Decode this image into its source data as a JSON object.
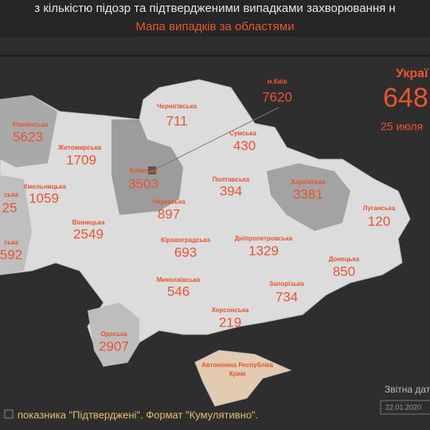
{
  "header": {
    "title": "з кількістю підозр та підтвердженими випадками захворювання н",
    "subtitle": "Мапа випадків за областями"
  },
  "regions": [
    {
      "name": "Рівненська",
      "value": "5623"
    },
    {
      "name": "Житомирська",
      "value": "1709"
    },
    {
      "name": "Чернігівська",
      "value": "711"
    },
    {
      "name": "м.Київ",
      "value": "7620"
    },
    {
      "name": "Сумська",
      "value": "430"
    },
    {
      "name": "Київська",
      "value": "3503"
    },
    {
      "name": "Хмельницька",
      "value": "1059"
    },
    {
      "name": "ська",
      "value": "25"
    },
    {
      "name": "Вінницька",
      "value": "2549"
    },
    {
      "name": "Черкаська",
      "value": "897"
    },
    {
      "name": "Полтавська",
      "value": "394"
    },
    {
      "name": "Харківська",
      "value": "3381"
    },
    {
      "name": "Луганська",
      "value": "120"
    },
    {
      "name": "Кіровоградська",
      "value": "693"
    },
    {
      "name": "Дніпропетровська",
      "value": "1329"
    },
    {
      "name": "Донецька",
      "value": "850"
    },
    {
      "name": "Миколаївська",
      "value": "546"
    },
    {
      "name": "Запорізька",
      "value": "734"
    },
    {
      "name": "Одеська",
      "value": "2907"
    },
    {
      "name": "Херсонська",
      "value": "219"
    },
    {
      "name": "ська",
      "value": "592"
    }
  ],
  "crimea": {
    "label_lines": [
      "Автономна Республіка",
      "Крим"
    ]
  },
  "summary": {
    "country": "Украї",
    "total": "648",
    "date": "25 июля"
  },
  "report_date": {
    "label": "Звітна дат",
    "value": "22.01.2020"
  },
  "footer": "показника \"Підтверджені\". Формат \"Кумулятивно\"."
}
